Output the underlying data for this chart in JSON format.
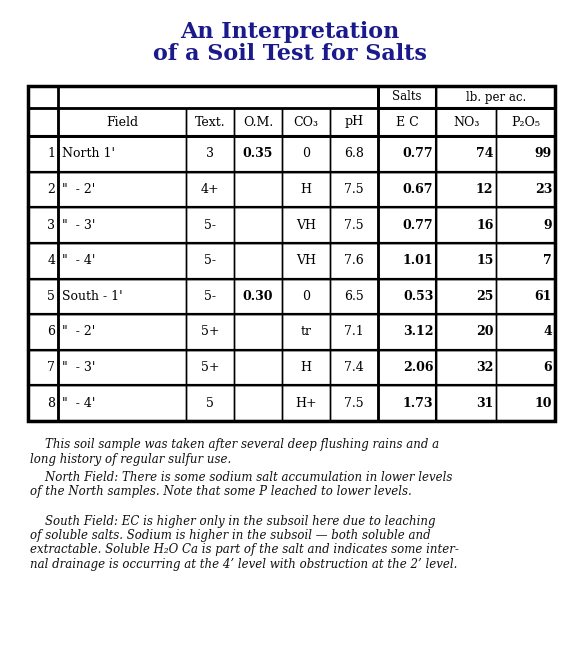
{
  "title_line1": "An Interpretation",
  "title_line2": "of a Soil Test for Salts",
  "title_color": "#1a1a8c",
  "background_color": "#ffffff",
  "rows": [
    [
      "1",
      "North 1'",
      "3",
      "0.35",
      "0",
      "6.8",
      "0.77",
      "74",
      "99"
    ],
    [
      "2",
      "\"  - 2'",
      "4+",
      "",
      "H",
      "7.5",
      "0.67",
      "12",
      "23"
    ],
    [
      "3",
      "\"  - 3'",
      "5-",
      "",
      "VH",
      "7.5",
      "0.77",
      "16",
      "9"
    ],
    [
      "4",
      "\"  - 4'",
      "5-",
      "",
      "VH",
      "7.6",
      "1.01",
      "15",
      "7"
    ],
    [
      "5",
      "South - 1'",
      "5-",
      "0.30",
      "0",
      "6.5",
      "0.53",
      "25",
      "61"
    ],
    [
      "6",
      "\"  - 2'",
      "5+",
      "",
      "tr",
      "7.1",
      "3.12",
      "20",
      "4"
    ],
    [
      "7",
      "\"  - 3'",
      "5+",
      "",
      "H",
      "7.4",
      "2.06",
      "32",
      "6"
    ],
    [
      "8",
      "\"  - 4'",
      "5",
      "",
      "H+",
      "7.5",
      "1.73",
      "31",
      "10"
    ]
  ],
  "bold_om_col": [
    3
  ],
  "bold_val_cols": [
    6,
    7,
    8
  ],
  "footer_paragraphs": [
    "    This soil sample was taken after several deep flushing rains and a long history of regular sulfur use.",
    "    North Field: There is some sodium salt accumulation in lower levels of the North samples. Note that some P leached to lower levels.",
    "    South Field: EC is higher only in the subsoil here due to leaching of soluble salts. Sodium is higher in the subsoil — both soluble and extractable. Soluble H₂O Ca is part of the salt and indicates some inter-nal drainage is occurring at the 4’ level with obstruction at the 2’ level."
  ]
}
